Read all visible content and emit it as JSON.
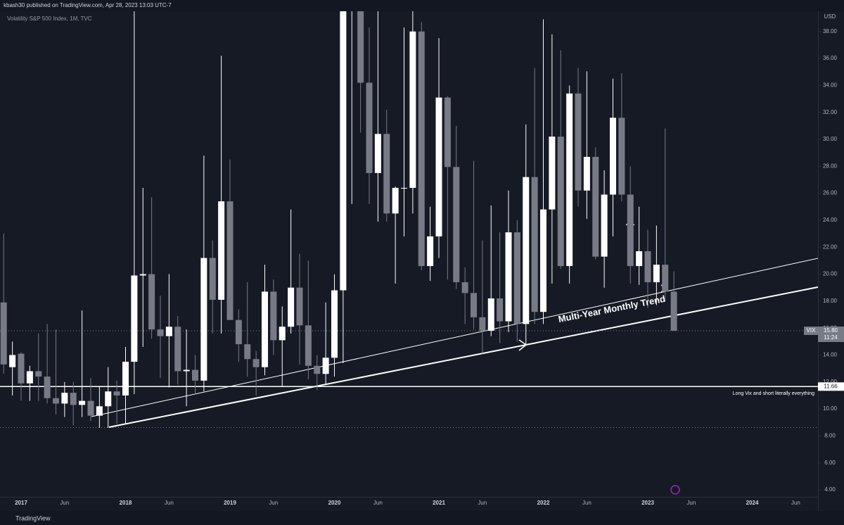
{
  "header": "kbash30 published on TradingView.com, Apr 28, 2023 13:03 UTC-7",
  "footer": "TradingView",
  "chart_data": {
    "type": "candlestick",
    "title": "Volatility S&P 500 Index, 1M, TVC",
    "y_axis_label": "USD",
    "up_color": "#ffffff",
    "down_color": "#787b86",
    "grid": false,
    "categories": [
      null,
      null,
      "2017",
      null,
      null,
      null,
      null,
      "Jun",
      null,
      null,
      null,
      null,
      null,
      null,
      "2018",
      null,
      null,
      null,
      null,
      "Jun",
      null,
      null,
      null,
      null,
      null,
      null,
      "2019",
      null,
      null,
      null,
      null,
      "Jun",
      null,
      null,
      null,
      null,
      null,
      null,
      "2020",
      null,
      null,
      null,
      null,
      "Jun",
      null,
      null,
      null,
      null,
      null,
      null,
      "2021",
      null,
      null,
      null,
      null,
      "Jun",
      null,
      null,
      null,
      null,
      null,
      null,
      "2022",
      null,
      null,
      null,
      null,
      "Jun",
      null,
      null,
      null,
      null,
      null,
      null,
      "2023",
      null,
      null,
      null,
      null,
      "Jun",
      null,
      null,
      null,
      null,
      null,
      null,
      "2024",
      null,
      null,
      null,
      null,
      "Jun",
      null
    ],
    "open": [
      17.9,
      13.1,
      14.1,
      11.9,
      12.8,
      12.4,
      10.8,
      10.4,
      11.2,
      10.3,
      10.6,
      9.5,
      10.2,
      11.3,
      11.0,
      13.5,
      19.9,
      20.0,
      15.9,
      15.4,
      16.1,
      12.8,
      12.9,
      12.1,
      21.2,
      18.1,
      25.4,
      16.6,
      14.8,
      13.7,
      13.1,
      18.7,
      15.1,
      16.1,
      19.0,
      16.2,
      13.2,
      12.6,
      13.8,
      18.8,
      40.1,
      53.5,
      34.2,
      27.5,
      30.4,
      24.5,
      26.4,
      26.4,
      38.0,
      20.6,
      22.8,
      33.1,
      27.95,
      19.4,
      18.6,
      16.8,
      15.8,
      18.2,
      16.5,
      23.1,
      16.3,
      27.2,
      17.2,
      24.8,
      30.2,
      20.6,
      33.4,
      26.2,
      28.7,
      21.3,
      25.9,
      31.6,
      25.9,
      20.6,
      21.7,
      19.4,
      20.7,
      18.7,
      null,
      null,
      null,
      null,
      null,
      null,
      null,
      null,
      null,
      null,
      null,
      null,
      null,
      null,
      null
    ],
    "high": [
      23.0,
      15.0,
      14.2,
      13.2,
      15.6,
      16.3,
      15.9,
      12.0,
      12.0,
      17.3,
      12.3,
      11.7,
      13.1,
      12.1,
      14.6,
      50.3,
      26.4,
      25.7,
      18.4,
      20.0,
      16.9,
      15.9,
      14.0,
      28.8,
      22.5,
      36.2,
      28.5,
      17.4,
      19.4,
      14.3,
      20.7,
      19.6,
      17.6,
      24.8,
      21.5,
      21.0,
      14.0,
      17.9,
      19.99,
      49.5,
      85.5,
      57.1,
      38.3,
      44.4,
      32.2,
      26.5,
      38.3,
      41.2,
      38.7,
      25.0,
      37.5,
      33.2,
      31.0,
      20.5,
      28.4,
      22.5,
      25.1,
      23.1,
      26.2,
      24.0,
      31.1,
      35.3,
      38.9,
      37.8,
      36.6,
      34.0,
      35.3,
      35.05,
      29.4,
      27.7,
      34.5,
      34.9,
      28.0,
      25.0,
      23.3,
      23.6,
      30.8,
      20.2,
      null,
      null,
      null,
      null,
      null,
      null,
      null,
      null,
      null,
      null,
      null,
      null,
      null,
      null,
      null
    ],
    "low": [
      12.6,
      11.0,
      10.6,
      10.6,
      10.6,
      10.4,
      9.6,
      9.4,
      8.8,
      9.4,
      9.1,
      8.6,
      8.6,
      8.9,
      8.9,
      11.1,
      14.6,
      15.2,
      12.3,
      11.6,
      11.8,
      10.2,
      11.1,
      11.3,
      15.6,
      15.6,
      16.6,
      13.5,
      12.4,
      11.0,
      12.5,
      14.0,
      11.7,
      15.6,
      13.3,
      12.2,
      11.4,
      11.8,
      12.4,
      13.4,
      25.2,
      30.5,
      25.2,
      23.9,
      23.9,
      19.3,
      22.8,
      24.5,
      20.3,
      19.5,
      21.2,
      19.6,
      18.9,
      16.3,
      15.9,
      14.1,
      15.4,
      14.9,
      15.7,
      15.0,
      14.8,
      16.3,
      16.3,
      19.3,
      20.4,
      19.3,
      25.0,
      24.1,
      21.1,
      19.0,
      22.8,
      25.4,
      19.3,
      19.2,
      17.5,
      17.7,
      18.0,
      15.8,
      null,
      null,
      null,
      null,
      null,
      null,
      null,
      null,
      null,
      null,
      null,
      null,
      null,
      null,
      null
    ],
    "close": [
      13.3,
      14.0,
      11.9,
      12.8,
      12.4,
      10.8,
      10.4,
      11.2,
      10.3,
      10.6,
      9.5,
      10.2,
      11.3,
      11.0,
      13.5,
      19.9,
      20.0,
      15.9,
      15.4,
      16.1,
      12.8,
      12.9,
      12.1,
      21.2,
      18.1,
      25.4,
      16.6,
      14.8,
      13.7,
      13.1,
      18.7,
      15.1,
      16.1,
      19.0,
      16.2,
      13.2,
      12.6,
      13.8,
      18.8,
      40.1,
      53.5,
      34.2,
      27.5,
      30.4,
      24.5,
      26.4,
      26.4,
      38.0,
      20.6,
      22.8,
      33.1,
      27.95,
      19.4,
      18.6,
      16.8,
      15.8,
      18.2,
      16.5,
      23.1,
      16.3,
      27.2,
      17.2,
      24.8,
      30.2,
      20.6,
      33.4,
      26.2,
      28.7,
      21.3,
      25.9,
      31.6,
      25.9,
      20.6,
      21.7,
      19.4,
      20.7,
      18.7,
      15.8,
      null,
      null,
      null,
      null,
      null,
      null,
      null,
      null,
      null,
      null,
      null,
      null,
      null,
      null,
      null
    ],
    "ylim": [
      3.48,
      39.5
    ],
    "yticks": [
      {
        "value": 4,
        "label": "4.00"
      },
      {
        "value": 6,
        "label": "6.00"
      },
      {
        "value": 8,
        "label": "8.00"
      },
      {
        "value": 10,
        "label": "10.00"
      },
      {
        "value": 12,
        "label": "12.00"
      },
      {
        "value": 14,
        "label": "14.00"
      },
      {
        "value": 16,
        "label": "16.00"
      },
      {
        "value": 18,
        "label": "18.00"
      },
      {
        "value": 20,
        "label": "20.00"
      },
      {
        "value": 22,
        "label": "22.00"
      },
      {
        "value": 24,
        "label": "24.00"
      },
      {
        "value": 26,
        "label": "26.00"
      },
      {
        "value": 28,
        "label": "28.00"
      },
      {
        "value": 30,
        "label": "30.00"
      },
      {
        "value": 32,
        "label": "32.00"
      },
      {
        "value": 34,
        "label": "34.00"
      },
      {
        "value": 36,
        "label": "36.00"
      },
      {
        "value": 38,
        "label": "38.00"
      }
    ],
    "hline": {
      "value": 11.66,
      "text": "Long Vix and short literally everything"
    },
    "last_price": {
      "value": 15.8,
      "label": "15.80"
    },
    "symbol": "VIX",
    "countdown": "11:24",
    "annotation": "Multi-Year Monthly Trend"
  }
}
